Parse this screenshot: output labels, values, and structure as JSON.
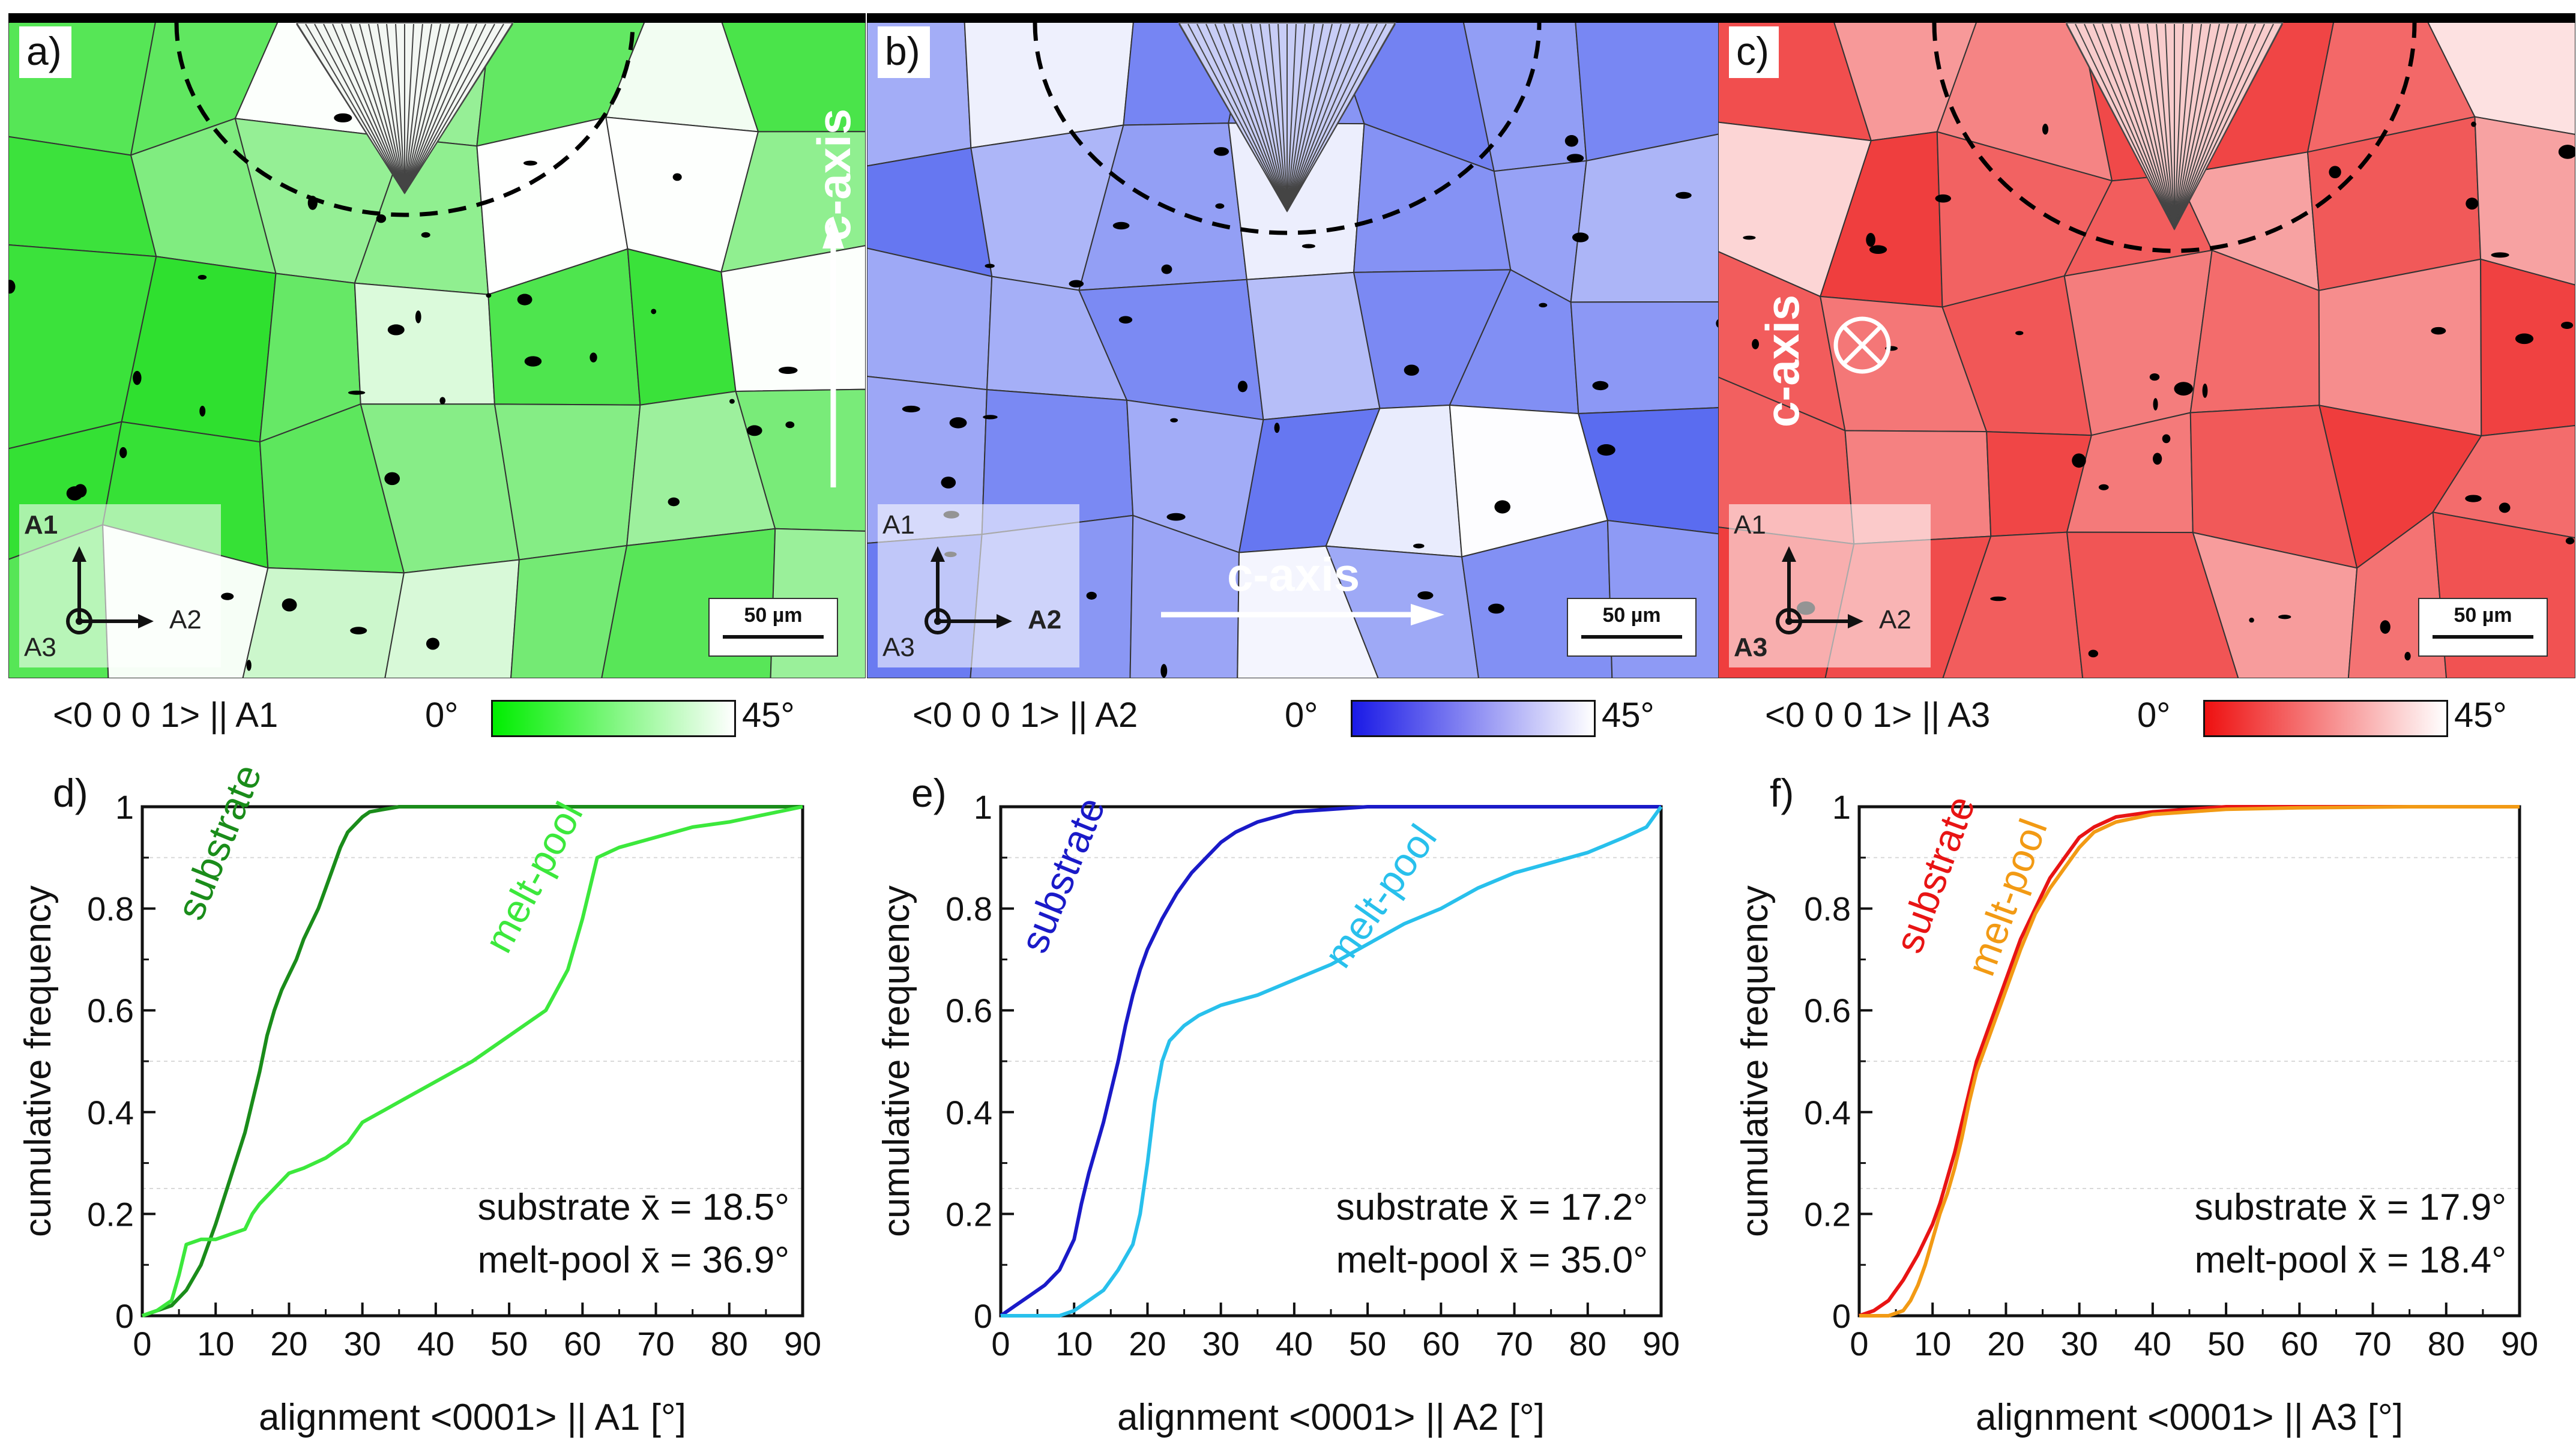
{
  "figure": {
    "panels": [
      {
        "letter": "a)",
        "color": "#2fe02f",
        "coord": {
          "top": "A1",
          "right": "A2",
          "corner": "A3"
        },
        "caxis_label": "c-axis",
        "scale_label": "50 µm",
        "legend": {
          "label": "<0 0 0 1> || A1",
          "min": "0°",
          "max": "45°",
          "start_color": "#00ee00"
        }
      },
      {
        "letter": "b)",
        "color": "#5a6cf0",
        "coord": {
          "top": "A1",
          "right": "A2",
          "corner": "A3"
        },
        "caxis_label": "c-axis",
        "scale_label": "50 µm",
        "legend": {
          "label": "<0 0 0 1> || A2",
          "min": "0°",
          "max": "45°",
          "start_color": "#1a1ae6"
        }
      },
      {
        "letter": "c)",
        "color": "#ef3b3b",
        "coord": {
          "top": "A1",
          "right": "A2",
          "corner": "A3"
        },
        "caxis_label": "c-axis",
        "scale_label": "50 µm",
        "legend": {
          "label": "<0 0 0 1> || A3",
          "min": "0°",
          "max": "45°",
          "start_color": "#ee1111"
        }
      }
    ]
  },
  "chart_data": [
    {
      "type": "line",
      "letter": "d)",
      "xlabel": "alignment <0001> || A1 [°]",
      "ylabel": "cumulative frequency",
      "xlim": [
        0,
        90
      ],
      "ylim": [
        0,
        1
      ],
      "xticks": [
        "0",
        "10",
        "20",
        "30",
        "40",
        "50",
        "60",
        "70",
        "80",
        "90"
      ],
      "yticks": [
        "0",
        "0.2",
        "0.4",
        "0.6",
        "0.8",
        "1"
      ],
      "series": [
        {
          "name": "substrate",
          "color": "#1a8c1a",
          "x": [
            0,
            2,
            4,
            6,
            8,
            10,
            12,
            14,
            15,
            16,
            17,
            18,
            19,
            20,
            21,
            22,
            24,
            25,
            26,
            27,
            28,
            30,
            31,
            33,
            35,
            40,
            50,
            90
          ],
          "y": [
            0,
            0.01,
            0.02,
            0.05,
            0.1,
            0.18,
            0.27,
            0.36,
            0.42,
            0.48,
            0.55,
            0.6,
            0.64,
            0.67,
            0.7,
            0.74,
            0.8,
            0.84,
            0.88,
            0.92,
            0.95,
            0.98,
            0.99,
            0.995,
            1,
            1,
            1,
            1
          ]
        },
        {
          "name": "melt-pool",
          "color": "#3ce83c",
          "x": [
            0,
            2,
            4,
            5,
            6,
            8,
            10,
            12,
            14,
            15,
            16,
            18,
            20,
            22,
            25,
            28,
            30,
            35,
            40,
            45,
            50,
            55,
            58,
            60,
            62,
            65,
            70,
            75,
            80,
            85,
            90
          ],
          "y": [
            0,
            0.01,
            0.03,
            0.08,
            0.14,
            0.15,
            0.15,
            0.16,
            0.17,
            0.2,
            0.22,
            0.25,
            0.28,
            0.29,
            0.31,
            0.34,
            0.38,
            0.42,
            0.46,
            0.5,
            0.55,
            0.6,
            0.68,
            0.78,
            0.9,
            0.92,
            0.94,
            0.96,
            0.97,
            0.985,
            1
          ]
        }
      ],
      "series_labels": [
        "substrate",
        "melt-pool"
      ],
      "annotations": [
        "substrate x̄ = 18.5°",
        "melt-pool x̄ = 36.9°"
      ]
    },
    {
      "type": "line",
      "letter": "e)",
      "xlabel": "alignment <0001> || A2 [°]",
      "ylabel": "cumulative frequency",
      "xlim": [
        0,
        90
      ],
      "ylim": [
        0,
        1
      ],
      "xticks": [
        "0",
        "10",
        "20",
        "30",
        "40",
        "50",
        "60",
        "70",
        "80",
        "90"
      ],
      "yticks": [
        "0",
        "0.2",
        "0.4",
        "0.6",
        "0.8",
        "1"
      ],
      "series": [
        {
          "name": "substrate",
          "color": "#1a1ac8",
          "x": [
            0,
            2,
            4,
            6,
            8,
            10,
            11,
            12,
            13,
            14,
            15,
            16,
            17,
            18,
            19,
            20,
            22,
            24,
            26,
            28,
            30,
            32,
            35,
            40,
            45,
            50,
            55,
            60,
            90
          ],
          "y": [
            0,
            0.02,
            0.04,
            0.06,
            0.09,
            0.15,
            0.22,
            0.28,
            0.33,
            0.38,
            0.44,
            0.5,
            0.57,
            0.63,
            0.68,
            0.72,
            0.78,
            0.83,
            0.87,
            0.9,
            0.93,
            0.95,
            0.97,
            0.99,
            0.995,
            1,
            1,
            1,
            1
          ]
        },
        {
          "name": "melt-pool",
          "color": "#28c0ec",
          "x": [
            0,
            5,
            8,
            10,
            12,
            14,
            16,
            18,
            19,
            20,
            21,
            22,
            23,
            25,
            27,
            30,
            35,
            40,
            45,
            50,
            55,
            60,
            65,
            70,
            75,
            80,
            85,
            88,
            90
          ],
          "y": [
            0,
            0,
            0,
            0.01,
            0.03,
            0.05,
            0.09,
            0.14,
            0.2,
            0.3,
            0.42,
            0.5,
            0.54,
            0.57,
            0.59,
            0.61,
            0.63,
            0.66,
            0.69,
            0.73,
            0.77,
            0.8,
            0.84,
            0.87,
            0.89,
            0.91,
            0.94,
            0.96,
            1
          ]
        }
      ],
      "series_labels": [
        "substrate",
        "melt-pool"
      ],
      "annotations": [
        "substrate x̄ = 17.2°",
        "melt-pool x̄ = 35.0°"
      ]
    },
    {
      "type": "line",
      "letter": "f)",
      "xlabel": "alignment <0001> || A3 [°]",
      "ylabel": "cumulative frequency",
      "xlim": [
        0,
        90
      ],
      "ylim": [
        0,
        1
      ],
      "xticks": [
        "0",
        "10",
        "20",
        "30",
        "40",
        "50",
        "60",
        "70",
        "80",
        "90"
      ],
      "yticks": [
        "0",
        "0.2",
        "0.4",
        "0.6",
        "0.8",
        "1"
      ],
      "series": [
        {
          "name": "substrate",
          "color": "#e81414",
          "x": [
            0,
            2,
            4,
            6,
            8,
            10,
            11,
            12,
            13,
            14,
            15,
            16,
            18,
            20,
            22,
            24,
            26,
            28,
            30,
            32,
            35,
            40,
            45,
            50,
            60,
            90
          ],
          "y": [
            0,
            0.01,
            0.03,
            0.07,
            0.12,
            0.18,
            0.22,
            0.27,
            0.32,
            0.38,
            0.44,
            0.5,
            0.58,
            0.66,
            0.74,
            0.8,
            0.86,
            0.9,
            0.94,
            0.96,
            0.98,
            0.99,
            0.995,
            1,
            1,
            1
          ]
        },
        {
          "name": "melt-pool",
          "color": "#f29a14",
          "x": [
            0,
            4,
            6,
            7,
            8,
            9,
            10,
            11,
            12,
            13,
            14,
            15,
            16,
            18,
            20,
            22,
            24,
            26,
            28,
            30,
            32,
            35,
            40,
            45,
            50,
            60,
            75,
            90
          ],
          "y": [
            0,
            0,
            0.01,
            0.03,
            0.06,
            0.1,
            0.15,
            0.2,
            0.24,
            0.29,
            0.35,
            0.42,
            0.48,
            0.56,
            0.64,
            0.72,
            0.79,
            0.84,
            0.88,
            0.92,
            0.95,
            0.97,
            0.985,
            0.99,
            0.995,
            0.998,
            1,
            1
          ]
        }
      ],
      "series_labels": [
        "substrate",
        "melt-pool"
      ],
      "annotations": [
        "substrate x̄ = 17.9°",
        "melt-pool x̄ = 18.4°"
      ]
    }
  ]
}
